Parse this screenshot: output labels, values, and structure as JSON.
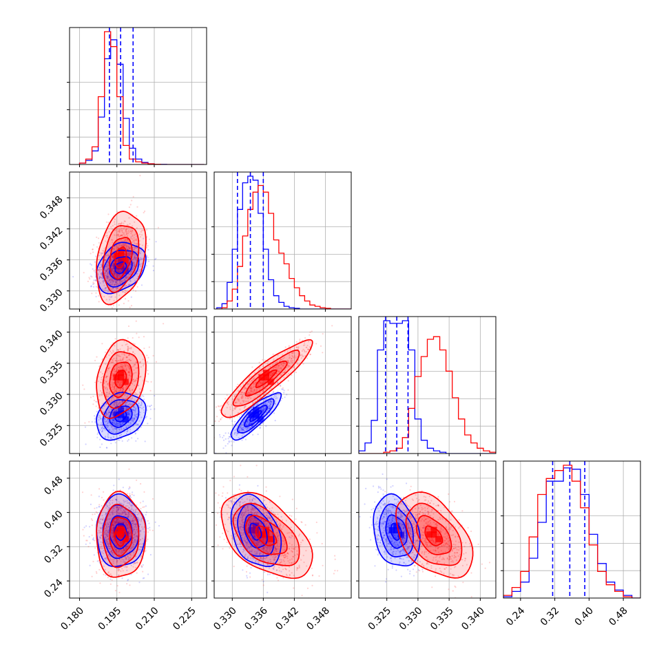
{
  "colors": {
    "posterior_a": "#0000ff",
    "posterior_b": "#ff0000",
    "grid": "#b0b0b0",
    "frame": "#000000"
  },
  "chart_data": {
    "type": "corner",
    "grid": true,
    "series": [
      {
        "color": "#0000ff",
        "means": [
          0.1965,
          0.3345,
          0.3265,
          0.355
        ],
        "sds": [
          0.0045,
          0.0022,
          0.0017,
          0.038
        ],
        "corr": {
          "0-1": 0.3,
          "0-2": 0.25,
          "1-2": 0.85,
          "0-3": 0.0,
          "1-3": -0.35,
          "2-3": -0.25
        },
        "quantiles_shown": true
      },
      {
        "color": "#ff0000",
        "means": [
          0.1965,
          0.3365,
          0.3325,
          0.345
        ],
        "sds": [
          0.0045,
          0.004,
          0.0028,
          0.045
        ],
        "corr": {
          "0-1": 0.3,
          "0-2": 0.25,
          "1-2": 0.9,
          "0-3": 0.0,
          "1-3": -0.5,
          "2-3": -0.45
        },
        "quantiles_shown": false
      }
    ],
    "histograms": [
      {
        "param": 0,
        "bin_edges": [
          0.18,
          0.1825,
          0.185,
          0.1875,
          0.19,
          0.1925,
          0.195,
          0.1975,
          0.2,
          0.2025,
          0.205,
          0.2075,
          0.21,
          0.2125,
          0.215,
          0.2175,
          0.22,
          0.2225,
          0.225,
          0.2275,
          0.23
        ],
        "counts_blue": [
          0.01,
          0.03,
          0.1,
          0.35,
          0.78,
          0.92,
          0.74,
          0.34,
          0.12,
          0.04,
          0.015,
          0.005,
          0.002,
          0.001,
          0,
          0,
          0,
          0,
          0,
          0
        ],
        "counts_red": [
          0.01,
          0.04,
          0.13,
          0.5,
          0.98,
          0.87,
          0.5,
          0.14,
          0.04,
          0.02,
          0.01,
          0.005,
          0.002,
          0,
          0,
          0,
          0,
          0,
          0,
          0
        ]
      },
      {
        "param": 1,
        "bin_edges": [
          0.327,
          0.328,
          0.329,
          0.33,
          0.331,
          0.332,
          0.333,
          0.334,
          0.335,
          0.336,
          0.337,
          0.338,
          0.339,
          0.34,
          0.341,
          0.342,
          0.343,
          0.344,
          0.345,
          0.346,
          0.347,
          0.348,
          0.349,
          0.35,
          0.351,
          0.352,
          0.353
        ],
        "counts_blue": [
          0.01,
          0.04,
          0.2,
          0.45,
          0.75,
          0.95,
          1.0,
          0.97,
          0.72,
          0.45,
          0.22,
          0.1,
          0.05,
          0.02,
          0.01,
          0.005,
          0,
          0,
          0,
          0,
          0,
          0,
          0,
          0,
          0,
          0
        ],
        "counts_red": [
          0.0,
          0.01,
          0.06,
          0.15,
          0.32,
          0.55,
          0.75,
          0.88,
          0.93,
          0.88,
          0.72,
          0.52,
          0.42,
          0.34,
          0.23,
          0.16,
          0.1,
          0.06,
          0.03,
          0.02,
          0.01,
          0.005,
          0,
          0,
          0,
          0
        ]
      },
      {
        "param": 2,
        "bin_edges": [
          0.3205,
          0.3215,
          0.3225,
          0.3235,
          0.3245,
          0.3255,
          0.3265,
          0.3275,
          0.3285,
          0.3295,
          0.3305,
          0.3315,
          0.3325,
          0.3335,
          0.3345,
          0.3355,
          0.3365,
          0.3375,
          0.3385,
          0.3395,
          0.3405,
          0.3415,
          0.3425
        ],
        "counts_blue": [
          0.02,
          0.08,
          0.25,
          0.78,
          1.0,
          0.98,
          0.98,
          1.0,
          0.78,
          0.26,
          0.1,
          0.04,
          0.02,
          0.01,
          0,
          0,
          0,
          0,
          0,
          0,
          0,
          0
        ],
        "counts_red": [
          0,
          0,
          0,
          0,
          0.01,
          0.02,
          0.04,
          0.12,
          0.34,
          0.58,
          0.73,
          0.86,
          0.88,
          0.78,
          0.62,
          0.42,
          0.26,
          0.14,
          0.08,
          0.04,
          0.02,
          0.01
        ]
      },
      {
        "param": 3,
        "bin_edges": [
          0.2,
          0.22,
          0.24,
          0.26,
          0.28,
          0.3,
          0.32,
          0.34,
          0.36,
          0.38,
          0.4,
          0.42,
          0.44,
          0.46,
          0.48,
          0.5,
          0.52
        ],
        "counts_blue": [
          0.01,
          0.05,
          0.12,
          0.3,
          0.57,
          0.88,
          0.88,
          0.98,
          0.97,
          0.78,
          0.48,
          0.26,
          0.12,
          0.06,
          0.02,
          0.0
        ],
        "counts_red": [
          0.02,
          0.08,
          0.2,
          0.46,
          0.78,
          0.9,
          0.96,
          1.0,
          0.88,
          0.68,
          0.4,
          0.2,
          0.1,
          0.05,
          0.01,
          0.0
        ]
      }
    ],
    "quantile_lines_blue": [
      [
        0.192,
        0.1965,
        0.2015
      ],
      [
        0.331,
        0.3335,
        0.336
      ],
      [
        0.3248,
        0.3266,
        0.3284
      ],
      [
        0.315,
        0.355,
        0.39
      ]
    ],
    "axes": [
      {
        "range": [
          0.176,
          0.231
        ],
        "ticks": [
          "0.180",
          "0.195",
          "0.210",
          "0.225"
        ],
        "tick_values": [
          0.18,
          0.195,
          0.21,
          0.225
        ]
      },
      {
        "range": [
          0.3265,
          0.353
        ],
        "ticks": [
          "0.330",
          "0.336",
          "0.342",
          "0.348"
        ],
        "tick_values": [
          0.33,
          0.336,
          0.342,
          0.348
        ]
      },
      {
        "range": [
          0.3205,
          0.3425
        ],
        "ticks": [
          "0.325",
          "0.330",
          "0.335",
          "0.340"
        ],
        "tick_values": [
          0.325,
          0.33,
          0.335,
          0.34
        ]
      },
      {
        "range": [
          0.2,
          0.52
        ],
        "ticks": [
          "0.24",
          "0.32",
          "0.40",
          "0.48"
        ],
        "tick_values": [
          0.24,
          0.32,
          0.4,
          0.48
        ]
      }
    ]
  }
}
